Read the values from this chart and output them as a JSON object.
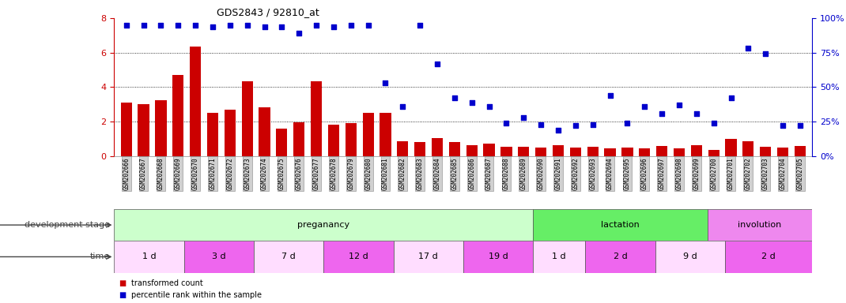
{
  "title": "GDS2843 / 92810_at",
  "samples": [
    "GSM202666",
    "GSM202667",
    "GSM202668",
    "GSM202669",
    "GSM202670",
    "GSM202671",
    "GSM202672",
    "GSM202673",
    "GSM202674",
    "GSM202675",
    "GSM202676",
    "GSM202677",
    "GSM202678",
    "GSM202679",
    "GSM202680",
    "GSM202681",
    "GSM202682",
    "GSM202683",
    "GSM202684",
    "GSM202685",
    "GSM202686",
    "GSM202687",
    "GSM202688",
    "GSM202689",
    "GSM202690",
    "GSM202691",
    "GSM202692",
    "GSM202693",
    "GSM202694",
    "GSM202695",
    "GSM202696",
    "GSM202697",
    "GSM202698",
    "GSM202699",
    "GSM202700",
    "GSM202701",
    "GSM202702",
    "GSM202703",
    "GSM202704",
    "GSM202705"
  ],
  "bar_values": [
    3.1,
    3.0,
    3.25,
    4.7,
    6.35,
    2.5,
    2.7,
    4.35,
    2.85,
    1.6,
    1.95,
    4.35,
    1.8,
    1.9,
    2.5,
    2.5,
    0.85,
    0.8,
    1.05,
    0.8,
    0.65,
    0.7,
    0.55,
    0.55,
    0.5,
    0.65,
    0.5,
    0.55,
    0.45,
    0.5,
    0.45,
    0.6,
    0.45,
    0.65,
    0.35,
    1.0,
    0.85,
    0.55,
    0.5,
    0.6
  ],
  "percentile_values": [
    95,
    95,
    95,
    95,
    95,
    94,
    95,
    95,
    94,
    94,
    89,
    95,
    94,
    95,
    95,
    53,
    36,
    95,
    67,
    42,
    39,
    36,
    24,
    28,
    23,
    19,
    22,
    23,
    44,
    24,
    36,
    31,
    37,
    31,
    24,
    42,
    78,
    74,
    22,
    22
  ],
  "bar_color": "#cc0000",
  "scatter_color": "#0000cc",
  "ylim_left": [
    0,
    8
  ],
  "ylim_right": [
    0,
    100
  ],
  "yticks_left": [
    0,
    2,
    4,
    6,
    8
  ],
  "yticks_right": [
    0,
    25,
    50,
    75,
    100
  ],
  "development_stages": [
    {
      "label": "preganancy",
      "start": 0,
      "end": 24,
      "color": "#ccffcc"
    },
    {
      "label": "lactation",
      "start": 24,
      "end": 34,
      "color": "#66ee66"
    },
    {
      "label": "involution",
      "start": 34,
      "end": 40,
      "color": "#ee88ee"
    }
  ],
  "time_periods": [
    {
      "label": "1 d",
      "start": 0,
      "end": 4,
      "color": "#ffddff"
    },
    {
      "label": "3 d",
      "start": 4,
      "end": 8,
      "color": "#ee66ee"
    },
    {
      "label": "7 d",
      "start": 8,
      "end": 12,
      "color": "#ffddff"
    },
    {
      "label": "12 d",
      "start": 12,
      "end": 16,
      "color": "#ee66ee"
    },
    {
      "label": "17 d",
      "start": 16,
      "end": 20,
      "color": "#ffddff"
    },
    {
      "label": "19 d",
      "start": 20,
      "end": 24,
      "color": "#ee66ee"
    },
    {
      "label": "1 d",
      "start": 24,
      "end": 27,
      "color": "#ffddff"
    },
    {
      "label": "2 d",
      "start": 27,
      "end": 31,
      "color": "#ee66ee"
    },
    {
      "label": "9 d",
      "start": 31,
      "end": 35,
      "color": "#ffddff"
    },
    {
      "label": "2 d",
      "start": 35,
      "end": 40,
      "color": "#ee66ee"
    }
  ],
  "dev_stage_label": "development stage",
  "time_label": "time",
  "legend_bar": "transformed count",
  "legend_scatter": "percentile rank within the sample",
  "background_color": "#ffffff"
}
